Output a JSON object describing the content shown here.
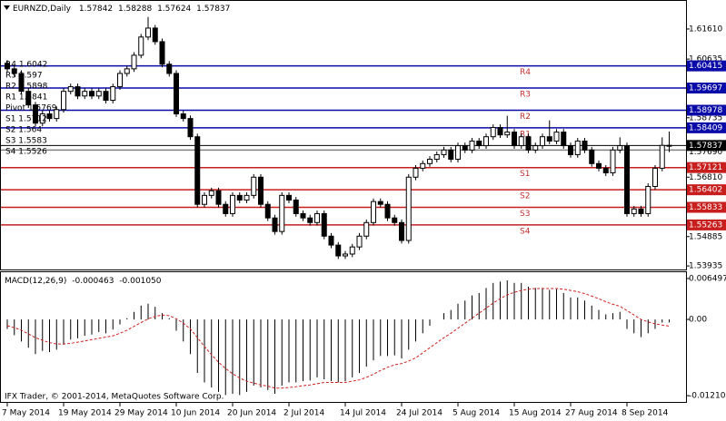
{
  "chart_data": [
    {
      "type": "candlestick",
      "title": "EURNZD,Daily",
      "categories": [
        "7 May 2014",
        null,
        null,
        null,
        null,
        null,
        null,
        null,
        "19 May 2014",
        null,
        null,
        null,
        null,
        null,
        null,
        null,
        "29 May 2014",
        null,
        null,
        null,
        null,
        null,
        null,
        null,
        "10 Jun 2014",
        null,
        null,
        null,
        null,
        null,
        null,
        null,
        "20 Jun 2014",
        null,
        null,
        null,
        null,
        null,
        null,
        null,
        "2 Jul 2014",
        null,
        null,
        null,
        null,
        null,
        null,
        null,
        "14 Jul 2014",
        null,
        null,
        null,
        null,
        null,
        null,
        null,
        "24 Jul 2014",
        null,
        null,
        null,
        null,
        null,
        null,
        null,
        "5 Aug 2014",
        null,
        null,
        null,
        null,
        null,
        null,
        null,
        "15 Aug 2014",
        null,
        null,
        null,
        null,
        null,
        null,
        null,
        "27 Aug 2014",
        null,
        null,
        null,
        null,
        null,
        null,
        null,
        "8 Sep 2014",
        null,
        null,
        null,
        null,
        null,
        null
      ],
      "candles": [
        [
          1.605,
          1.606,
          1.6022,
          1.6032
        ],
        [
          1.6032,
          1.6042,
          1.6007,
          1.6017
        ],
        [
          1.6017,
          1.6027,
          1.5949,
          1.5959
        ],
        [
          1.5959,
          1.5969,
          1.5905,
          1.5915
        ],
        [
          1.5915,
          1.5925,
          1.5846,
          1.5856
        ],
        [
          1.5856,
          1.5896,
          1.5846,
          1.5886
        ],
        [
          1.5886,
          1.5896,
          1.5861,
          1.5871
        ],
        [
          1.5871,
          1.591,
          1.5861,
          1.59
        ],
        [
          1.59,
          1.5969,
          1.589,
          1.5959
        ],
        [
          1.5959,
          1.5984,
          1.5949,
          1.5974
        ],
        [
          1.5974,
          1.5984,
          1.5934,
          1.5944
        ],
        [
          1.5944,
          1.5969,
          1.5934,
          1.5959
        ],
        [
          1.5959,
          1.5969,
          1.5934,
          1.5944
        ],
        [
          1.5944,
          1.5969,
          1.5934,
          1.5959
        ],
        [
          1.5959,
          1.5969,
          1.592,
          1.593
        ],
        [
          1.593,
          1.5984,
          1.592,
          1.5974
        ],
        [
          1.5974,
          1.6027,
          1.5964,
          1.6017
        ],
        [
          1.6017,
          1.6042,
          1.6007,
          1.6032
        ],
        [
          1.6032,
          1.6086,
          1.6022,
          1.6076
        ],
        [
          1.6076,
          1.6145,
          1.6066,
          1.6135
        ],
        [
          1.6135,
          1.62,
          1.6125,
          1.6164
        ],
        [
          1.6164,
          1.6174,
          1.611,
          1.612
        ],
        [
          1.612,
          1.613,
          1.6037,
          1.6047
        ],
        [
          1.6047,
          1.6057,
          1.6007,
          1.6017
        ],
        [
          1.6017,
          1.6027,
          1.5876,
          1.5886
        ],
        [
          1.5886,
          1.5896,
          1.5861,
          1.5871
        ],
        [
          1.5871,
          1.5881,
          1.5802,
          1.5812
        ],
        [
          1.5812,
          1.5822,
          1.5583,
          1.5593
        ],
        [
          1.5593,
          1.5632,
          1.5583,
          1.5622
        ],
        [
          1.5622,
          1.5647,
          1.5612,
          1.5637
        ],
        [
          1.5637,
          1.5647,
          1.5583,
          1.5593
        ],
        [
          1.5593,
          1.5603,
          1.5553,
          1.5563
        ],
        [
          1.5563,
          1.5632,
          1.5553,
          1.5622
        ],
        [
          1.5622,
          1.5632,
          1.5597,
          1.5607
        ],
        [
          1.5607,
          1.5632,
          1.5597,
          1.5622
        ],
        [
          1.5622,
          1.5691,
          1.5612,
          1.5681
        ],
        [
          1.5681,
          1.5691,
          1.5583,
          1.5593
        ],
        [
          1.5593,
          1.5603,
          1.5539,
          1.5549
        ],
        [
          1.5549,
          1.5559,
          1.5495,
          1.5505
        ],
        [
          1.5505,
          1.5632,
          1.5495,
          1.5622
        ],
        [
          1.5622,
          1.5632,
          1.5597,
          1.5607
        ],
        [
          1.5607,
          1.5617,
          1.5553,
          1.5563
        ],
        [
          1.5563,
          1.5573,
          1.5539,
          1.5549
        ],
        [
          1.5549,
          1.5559,
          1.5524,
          1.5534
        ],
        [
          1.5534,
          1.5573,
          1.5524,
          1.5563
        ],
        [
          1.5563,
          1.5573,
          1.548,
          1.549
        ],
        [
          1.549,
          1.55,
          1.5451,
          1.5461
        ],
        [
          1.5461,
          1.5471,
          1.5416,
          1.5426
        ],
        [
          1.5426,
          1.5442,
          1.5416,
          1.5432
        ],
        [
          1.5432,
          1.5465,
          1.5422,
          1.5455
        ],
        [
          1.5455,
          1.55,
          1.5445,
          1.549
        ],
        [
          1.549,
          1.5544,
          1.548,
          1.5534
        ],
        [
          1.5534,
          1.5612,
          1.5524,
          1.5602
        ],
        [
          1.5602,
          1.5612,
          1.5583,
          1.5593
        ],
        [
          1.5593,
          1.5603,
          1.5539,
          1.5549
        ],
        [
          1.5549,
          1.5559,
          1.5524,
          1.5534
        ],
        [
          1.5534,
          1.5544,
          1.5466,
          1.5476
        ],
        [
          1.5476,
          1.5691,
          1.5466,
          1.5681
        ],
        [
          1.5681,
          1.572,
          1.5671,
          1.571
        ],
        [
          1.571,
          1.5735,
          1.57,
          1.5725
        ],
        [
          1.5725,
          1.5749,
          1.5715,
          1.5739
        ],
        [
          1.5739,
          1.5764,
          1.5729,
          1.5754
        ],
        [
          1.5754,
          1.5779,
          1.5744,
          1.5769
        ],
        [
          1.5769,
          1.5779,
          1.5729,
          1.5739
        ],
        [
          1.5739,
          1.5793,
          1.5729,
          1.5783
        ],
        [
          1.5783,
          1.5793,
          1.5759,
          1.5769
        ],
        [
          1.5769,
          1.5808,
          1.5759,
          1.5798
        ],
        [
          1.5798,
          1.5808,
          1.5773,
          1.5783
        ],
        [
          1.5783,
          1.5822,
          1.5773,
          1.5812
        ],
        [
          1.5812,
          1.5852,
          1.5802,
          1.5842
        ],
        [
          1.5842,
          1.5852,
          1.5808,
          1.5818
        ],
        [
          1.5818,
          1.588,
          1.5808,
          1.5827
        ],
        [
          1.5827,
          1.5837,
          1.5773,
          1.5783
        ],
        [
          1.5783,
          1.5822,
          1.5773,
          1.5812
        ],
        [
          1.5812,
          1.5822,
          1.5759,
          1.5769
        ],
        [
          1.5769,
          1.5793,
          1.5759,
          1.5783
        ],
        [
          1.5783,
          1.5822,
          1.5773,
          1.5812
        ],
        [
          1.5812,
          1.5865,
          1.5788,
          1.5798
        ],
        [
          1.5798,
          1.5837,
          1.5788,
          1.5827
        ],
        [
          1.5827,
          1.5837,
          1.5773,
          1.5783
        ],
        [
          1.5783,
          1.5793,
          1.5744,
          1.5754
        ],
        [
          1.5754,
          1.5808,
          1.5744,
          1.5798
        ],
        [
          1.5798,
          1.5808,
          1.5759,
          1.5769
        ],
        [
          1.5769,
          1.5779,
          1.5715,
          1.5725
        ],
        [
          1.5725,
          1.5735,
          1.57,
          1.571
        ],
        [
          1.571,
          1.572,
          1.5685,
          1.5695
        ],
        [
          1.5695,
          1.5779,
          1.5685,
          1.5769
        ],
        [
          1.5769,
          1.581,
          1.5759,
          1.5783
        ],
        [
          1.5783,
          1.5793,
          1.5553,
          1.5563
        ],
        [
          1.5563,
          1.5588,
          1.5553,
          1.5578
        ],
        [
          1.5578,
          1.5588,
          1.5553,
          1.5563
        ],
        [
          1.5563,
          1.5661,
          1.5553,
          1.5651
        ],
        [
          1.5651,
          1.572,
          1.5641,
          1.571
        ],
        [
          1.571,
          1.581,
          1.57,
          1.5784
        ],
        [
          1.57842,
          1.58288,
          1.57624,
          1.57837
        ]
      ],
      "up_color": "#ffffff",
      "down_color": "#000000",
      "wick_color": "#000000",
      "ylim": [
        1.5382,
        1.6252
      ],
      "yticks": [
        {
          "value": 1.6161,
          "label": "1.61610"
        },
        1.60635,
        1.58735,
        {
          "value": 1.5681,
          "label": "1.56810"
        },
        1.54885,
        1.53935
      ],
      "levels": [
        {
          "label": "R4",
          "value": 1.60415,
          "color": "#0a0aa8"
        },
        {
          "label": "R3",
          "value": 1.59697,
          "color": "#0a0aa8"
        },
        {
          "label": "R2",
          "value": 1.58978,
          "color": "#0a0aa8"
        },
        {
          "label": "R1",
          "value": 1.58409,
          "color": "#0a0aa8"
        },
        {
          "label": "S1",
          "value": 1.57121,
          "color": "#c81e1e"
        },
        {
          "label": "S2",
          "value": 1.56402,
          "color": "#c81e1e"
        },
        {
          "label": "S3",
          "value": 1.55833,
          "color": "#c81e1e"
        },
        {
          "label": "S4",
          "value": 1.55263,
          "color": "#c81e1e"
        }
      ],
      "level_text_color": "#c03030",
      "pivot": {
        "value": 1.5769,
        "label": "1.57690",
        "color": "#808080"
      },
      "pivot_table": [
        "R4 1.6042",
        "R3 1.597",
        "R2 1.5898",
        "R1 1.5841",
        "Pivot 1.5769",
        "S1 1.5712",
        "S2 1.564",
        "S3 1.5583",
        "S4 1.5526"
      ]
    },
    {
      "type": "macd",
      "title": "MACD(12,26,9)",
      "title_values": [
        "-0.000463",
        "-0.001050"
      ],
      "histogram": [
        -0.0015,
        -0.0025,
        -0.0035,
        -0.0045,
        -0.0055,
        -0.005,
        -0.0052,
        -0.0048,
        -0.004,
        -0.0032,
        -0.003,
        -0.0026,
        -0.0024,
        -0.002,
        -0.0022,
        -0.0016,
        -0.0008,
        0.0002,
        0.0012,
        0.0022,
        0.0025,
        0.002,
        0.001,
        0.0002,
        -0.0018,
        -0.0035,
        -0.0055,
        -0.0085,
        -0.01,
        -0.0108,
        -0.0115,
        -0.012,
        -0.0118,
        -0.012,
        -0.0115,
        -0.0105,
        -0.0108,
        -0.0112,
        -0.0118,
        -0.0105,
        -0.01,
        -0.01,
        -0.0098,
        -0.0097,
        -0.0092,
        -0.0095,
        -0.0098,
        -0.01,
        -0.0098,
        -0.0092,
        -0.0085,
        -0.0075,
        -0.0065,
        -0.0058,
        -0.0058,
        -0.0057,
        -0.0062,
        -0.0048,
        -0.0035,
        -0.0022,
        -0.001,
        0.0,
        0.001,
        0.0015,
        0.0025,
        0.003,
        0.0038,
        0.0042,
        0.005,
        0.0058,
        0.006,
        0.0062,
        0.0058,
        0.0058,
        0.0052,
        0.005,
        0.005,
        0.0047,
        0.0048,
        0.0042,
        0.0035,
        0.0035,
        0.003,
        0.0022,
        0.0015,
        0.0008,
        0.001,
        0.0012,
        -0.0015,
        -0.0022,
        -0.0028,
        -0.0022,
        -0.0015,
        -0.0005,
        -0.000463
      ],
      "signal": [
        -0.001,
        -0.0013,
        -0.0017,
        -0.0023,
        -0.0029,
        -0.0033,
        -0.0037,
        -0.0039,
        -0.0039,
        -0.0038,
        -0.0036,
        -0.0034,
        -0.0032,
        -0.003,
        -0.0028,
        -0.0026,
        -0.0022,
        -0.0017,
        -0.0011,
        -0.0005,
        0.0001,
        0.0005,
        0.0007,
        0.0006,
        0.0001,
        -0.0006,
        -0.0015,
        -0.0029,
        -0.0043,
        -0.0056,
        -0.0068,
        -0.0078,
        -0.0086,
        -0.0093,
        -0.0098,
        -0.0101,
        -0.0104,
        -0.0106,
        -0.0109,
        -0.0109,
        -0.0108,
        -0.0107,
        -0.0105,
        -0.0104,
        -0.0102,
        -0.01,
        -0.01,
        -0.01,
        -0.01,
        -0.0098,
        -0.0096,
        -0.0092,
        -0.0087,
        -0.0081,
        -0.0076,
        -0.0072,
        -0.007,
        -0.0066,
        -0.0061,
        -0.0053,
        -0.0045,
        -0.0037,
        -0.0029,
        -0.0022,
        -0.0014,
        -0.0006,
        0.0002,
        0.001,
        0.0018,
        0.0026,
        0.0033,
        0.0039,
        0.0043,
        0.0046,
        0.0048,
        0.0049,
        0.0049,
        0.0049,
        0.0049,
        0.0048,
        0.0046,
        0.0044,
        0.0041,
        0.0037,
        0.0033,
        0.0028,
        0.0024,
        0.0021,
        0.0014,
        0.0007,
        0.0,
        -0.0004,
        -0.0007,
        -0.0009,
        -0.00105
      ],
      "histogram_color": "#000000",
      "signal_color": "#d02020",
      "ylim": [
        -0.0131,
        0.0075
      ],
      "yticks": [
        0.006497,
        {
          "value": 0,
          "label": "0.00"
        },
        -0.012104
      ]
    }
  ],
  "footer": "IFX Trader, © 2001-2014, MetaQuotes Software Corp."
}
